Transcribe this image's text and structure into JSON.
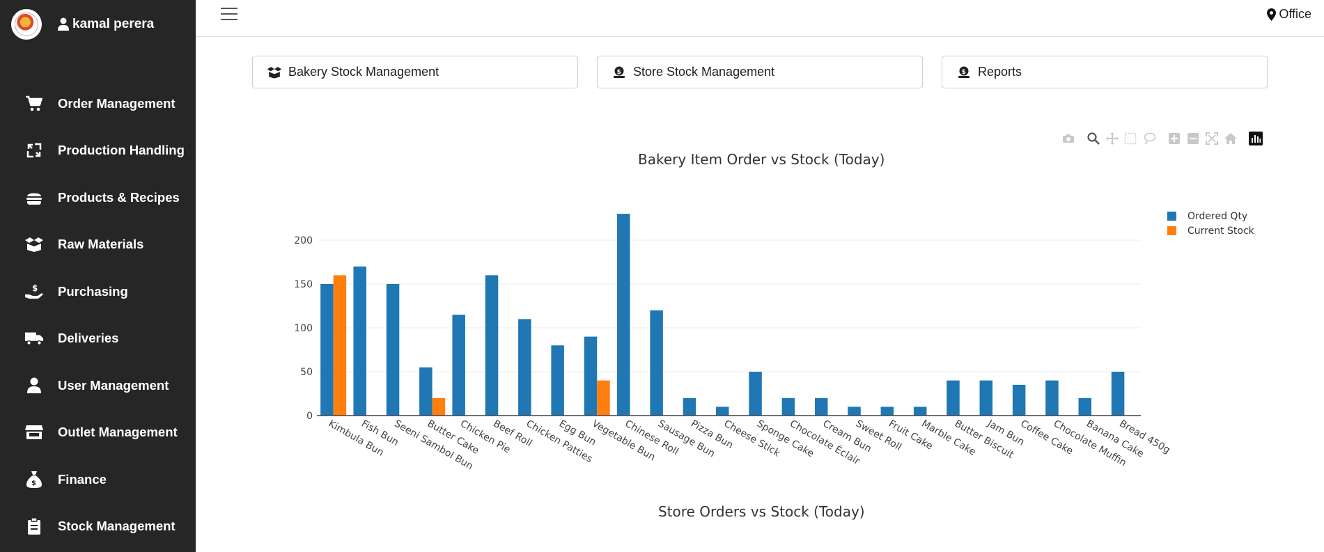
{
  "sidebar": {
    "user_name": "kamal perera",
    "items": [
      {
        "label": "Order Management",
        "icon": "cart-icon"
      },
      {
        "label": "Production Handling",
        "icon": "recycle-icon"
      },
      {
        "label": "Products & Recipes",
        "icon": "burger-icon"
      },
      {
        "label": "Raw Materials",
        "icon": "box-open-icon"
      },
      {
        "label": "Purchasing",
        "icon": "hand-dollar-icon"
      },
      {
        "label": "Deliveries",
        "icon": "truck-icon"
      },
      {
        "label": "User Management",
        "icon": "user-icon"
      },
      {
        "label": "Outlet Management",
        "icon": "store-icon"
      },
      {
        "label": "Finance",
        "icon": "money-bag-icon"
      },
      {
        "label": "Stock Management",
        "icon": "clipboard-icon"
      }
    ]
  },
  "header": {
    "location": "Office"
  },
  "top_buttons": [
    {
      "label": "Bakery Stock Management",
      "icon": "box-open-icon"
    },
    {
      "label": "Store Stock Management",
      "icon": "coin-hand-icon"
    },
    {
      "label": "Reports",
      "icon": "coin-hand-icon"
    }
  ],
  "colors": {
    "sidebar_bg": "#262626",
    "ordered": "#1f77b4",
    "stock": "#ff7f0e"
  },
  "chart_data": {
    "type": "bar",
    "title": "Bakery Item Order vs Stock (Today)",
    "xlabel": "",
    "ylabel": "",
    "ylim": [
      0,
      240
    ],
    "yticks": [
      0,
      50,
      100,
      150,
      200
    ],
    "grid": true,
    "legend_position": "top-right",
    "categories": [
      "Kimbula Bun",
      "Fish Bun",
      "Seeni Sambol Bun",
      "Butter Cake",
      "Chicken Pie",
      "Beef Roll",
      "Chicken Patties",
      "Egg Bun",
      "Vegetable Bun",
      "Chinese Roll",
      "Sausage Bun",
      "Pizza Bun",
      "Cheese Stick",
      "Sponge Cake",
      "Chocolate Éclair",
      "Cream Bun",
      "Sweet Roll",
      "Fruit Cake",
      "Marble Cake",
      "Butter Biscuit",
      "Jam Bun",
      "Coffee Cake",
      "Chocolate Muffin",
      "Banana Cake",
      "Bread 450g"
    ],
    "series": [
      {
        "name": "Ordered Qty",
        "values": [
          150,
          170,
          150,
          55,
          115,
          160,
          110,
          80,
          90,
          230,
          120,
          20,
          10,
          50,
          20,
          20,
          10,
          10,
          10,
          40,
          40,
          35,
          40,
          20,
          50
        ]
      },
      {
        "name": "Current Stock",
        "values": [
          160,
          0,
          0,
          20,
          0,
          0,
          0,
          0,
          40,
          0,
          0,
          0,
          0,
          0,
          0,
          0,
          0,
          0,
          0,
          0,
          0,
          0,
          0,
          0,
          0
        ]
      }
    ]
  },
  "second_chart": {
    "title": "Store Orders vs Stock (Today)"
  }
}
